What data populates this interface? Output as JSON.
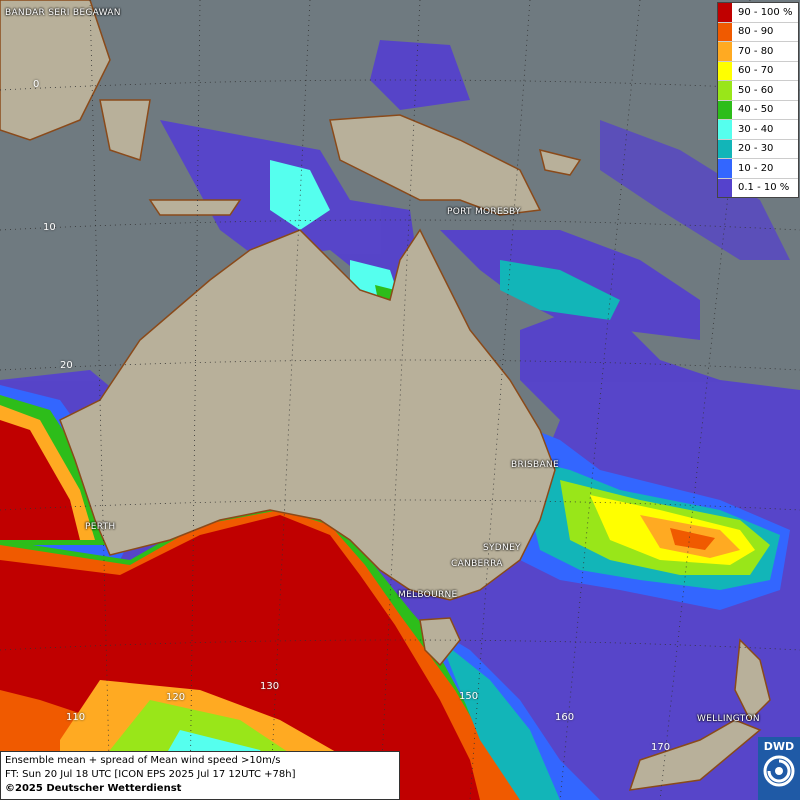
{
  "map": {
    "places": {
      "bandar": "BANDAR SERI BEGAWAN",
      "port_moresby": "PORT MORESBY",
      "brisbane": "BRISBANE",
      "perth": "PERTH",
      "sydney": "SYDNEY",
      "canberra": "CANBERRA",
      "melbourne": "MELBOURNE",
      "wellington": "WELLINGTON"
    },
    "grid_labels": {
      "lat0": "0",
      "lat10": "10",
      "lat20": "20",
      "lon110": "110",
      "lon120": "120",
      "lon130": "130",
      "lon150": "150",
      "lon160": "160",
      "lon170": "170"
    }
  },
  "legend": {
    "items": [
      {
        "label": "90 - 100 %",
        "color": "#c00000"
      },
      {
        "label": "80 - 90",
        "color": "#f05a00"
      },
      {
        "label": "70 - 80",
        "color": "#ffaa22"
      },
      {
        "label": "60 - 70",
        "color": "#ffff00"
      },
      {
        "label": "50 - 60",
        "color": "#99e619"
      },
      {
        "label": "40 - 50",
        "color": "#2dbd1a"
      },
      {
        "label": "30 - 40",
        "color": "#55ffee"
      },
      {
        "label": "20 - 30",
        "color": "#12b5b8"
      },
      {
        "label": "10 - 20",
        "color": "#3366ff"
      },
      {
        "label": "0.1 - 10 %",
        "color": "#5542cc"
      }
    ]
  },
  "info": {
    "line1": "Ensemble mean + spread of Mean wind speed >10m/s",
    "line2": "FT: Sun 20 Jul 18 UTC [ICON EPS 2025 Jul 17 12UTC +78h]",
    "line3": "©2025 Deutscher Wetterdienst"
  },
  "logo": {
    "text": "DWD"
  }
}
